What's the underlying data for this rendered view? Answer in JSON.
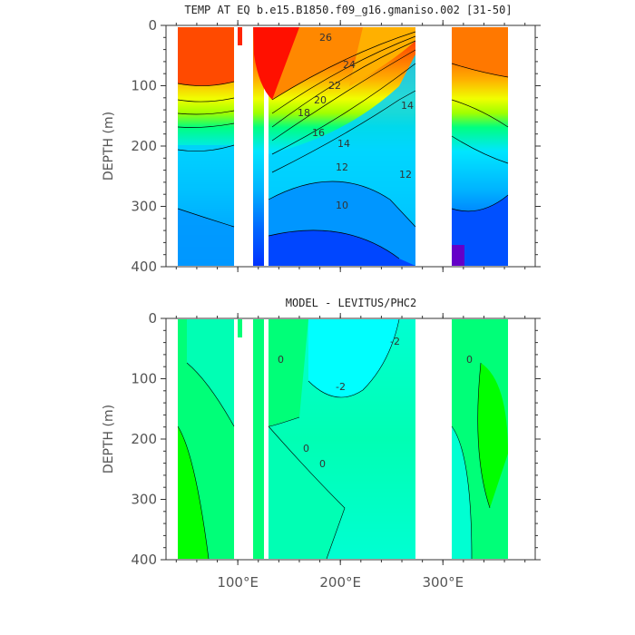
{
  "chart_data": [
    {
      "type": "heatmap",
      "title": "TEMP AT EQ b.e15.B1850.f09_g16.gmaniso.002 [31-50]",
      "xlabel": "",
      "ylabel": "DEPTH (m)",
      "xlim": [
        30,
        390
      ],
      "ylim": [
        0,
        400
      ],
      "y_inverted": true,
      "y_ticks": [
        "0",
        "100",
        "200",
        "300",
        "400"
      ],
      "contour_labels": [
        "26",
        "24",
        "22",
        "20",
        "18",
        "16",
        "14",
        "14",
        "12",
        "12",
        "10"
      ],
      "colors": [
        "#ff2400",
        "#ff5500",
        "#ff8c00",
        "#ffb400",
        "#ffe000",
        "#f0ff00",
        "#c8ff00",
        "#00ff78",
        "#00e6a0",
        "#00ffd2",
        "#00e6ff",
        "#00b4ff",
        "#0078ff",
        "#0032ff",
        "#6400c8"
      ]
    },
    {
      "type": "heatmap",
      "title": "MODEL - LEVITUS/PHC2",
      "xlabel": "",
      "ylabel": "DEPTH (m)",
      "xlim": [
        30,
        390
      ],
      "ylim": [
        0,
        400
      ],
      "y_inverted": true,
      "x_ticks": [
        "100°E",
        "200°E",
        "300°E"
      ],
      "y_ticks": [
        "0",
        "100",
        "200",
        "300",
        "400"
      ],
      "contour_labels": [
        "0",
        "-2",
        "-2",
        "0",
        "0",
        "0"
      ],
      "colors": [
        "#00ff00",
        "#00ff78",
        "#00ffd2",
        "#00ffff"
      ]
    }
  ]
}
